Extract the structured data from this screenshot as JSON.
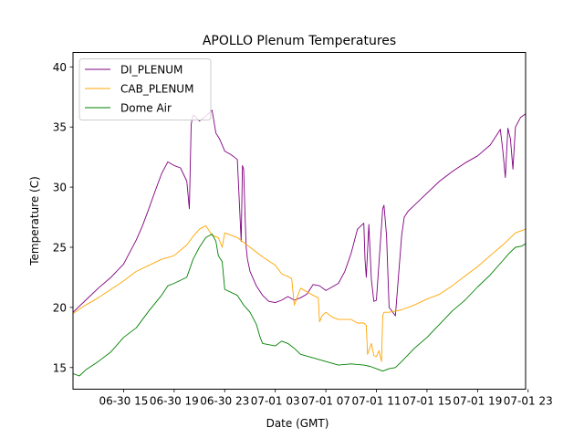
{
  "chart_data": {
    "type": "line",
    "title": "APOLLO Plenum Temperatures",
    "xlabel": "Date (GMT)",
    "ylabel": "Temperature (C)",
    "xlim": [
      11.0,
      46.8
    ],
    "ylim": [
      13.2,
      41.2
    ],
    "grid": false,
    "legend_position": "top-left",
    "x_unit": "hours since 2017-06-30 00:00 GMT",
    "x_ticks": [
      {
        "value": 15,
        "label": "06-30 15"
      },
      {
        "value": 19,
        "label": "06-30 19"
      },
      {
        "value": 23,
        "label": "06-30 23"
      },
      {
        "value": 27,
        "label": "07-01 03"
      },
      {
        "value": 31,
        "label": "07-01 07"
      },
      {
        "value": 35,
        "label": "07-01 11"
      },
      {
        "value": 39,
        "label": "07-01 15"
      },
      {
        "value": 43,
        "label": "07-01 19"
      },
      {
        "value": 47,
        "label": "07-01 23"
      }
    ],
    "y_ticks": [
      {
        "value": 15,
        "label": "15"
      },
      {
        "value": 20,
        "label": "20"
      },
      {
        "value": 25,
        "label": "25"
      },
      {
        "value": 30,
        "label": "30"
      },
      {
        "value": 35,
        "label": "35"
      },
      {
        "value": 40,
        "label": "40"
      }
    ],
    "series": [
      {
        "name": "DI_PLENUM",
        "color": "#800080",
        "x": [
          11.0,
          12.0,
          13.0,
          14.0,
          15.0,
          16.0,
          16.5,
          17.0,
          17.5,
          18.0,
          18.5,
          19.0,
          19.5,
          20.0,
          20.2,
          20.35,
          20.45,
          20.55,
          21.0,
          21.5,
          22.0,
          22.3,
          22.6,
          23.0,
          23.5,
          24.0,
          24.3,
          24.4,
          24.5,
          24.6,
          24.7,
          24.8,
          25.0,
          25.5,
          26.0,
          26.5,
          27.0,
          27.5,
          28.0,
          28.5,
          29.0,
          29.5,
          30.0,
          30.5,
          31.0,
          32.0,
          32.5,
          33.0,
          33.5,
          34.0,
          34.1,
          34.2,
          34.4,
          34.6,
          34.8,
          35.0,
          35.5,
          35.6,
          35.8,
          36.0,
          36.3,
          36.5,
          37.0,
          37.2,
          37.5,
          38.0,
          39.0,
          40.0,
          41.0,
          42.0,
          43.0,
          44.0,
          44.5,
          44.8,
          45.0,
          45.2,
          45.4,
          45.6,
          45.8,
          46.0,
          46.4,
          46.8
        ],
        "values": [
          19.6,
          20.6,
          21.6,
          22.5,
          23.6,
          25.6,
          26.8,
          28.2,
          29.7,
          31.1,
          32.1,
          31.8,
          31.6,
          30.5,
          28.2,
          35.2,
          35.8,
          36.0,
          35.5,
          35.9,
          36.4,
          34.5,
          34.0,
          33.0,
          32.7,
          32.3,
          25.5,
          31.8,
          31.5,
          28.0,
          25.0,
          24.0,
          23.0,
          21.8,
          21.0,
          20.5,
          20.4,
          20.6,
          20.9,
          20.6,
          20.8,
          21.1,
          21.9,
          21.8,
          21.4,
          22.0,
          23.0,
          24.5,
          26.5,
          27.0,
          24.0,
          22.5,
          26.9,
          22.3,
          20.5,
          20.6,
          28.2,
          28.5,
          26.0,
          20.0,
          19.6,
          19.3,
          26.0,
          27.5,
          28.0,
          28.5,
          29.5,
          30.5,
          31.3,
          32.0,
          32.6,
          33.5,
          34.3,
          34.8,
          33.0,
          30.8,
          34.9,
          34.0,
          31.5,
          35.0,
          35.8,
          36.1
        ]
      },
      {
        "name": "CAB_PLENUM",
        "color": "#ffa500",
        "x": [
          11.0,
          12.0,
          13.0,
          14.0,
          15.0,
          16.0,
          17.0,
          18.0,
          19.0,
          20.0,
          20.5,
          21.0,
          21.5,
          22.0,
          22.5,
          22.8,
          23.0,
          24.0,
          25.0,
          26.0,
          27.0,
          27.5,
          27.9,
          28.0,
          28.1,
          28.3,
          28.5,
          29.0,
          29.5,
          30.0,
          30.4,
          30.5,
          30.7,
          31.0,
          31.5,
          32.0,
          33.0,
          33.5,
          34.0,
          34.2,
          34.3,
          34.6,
          34.8,
          35.0,
          35.2,
          35.4,
          35.5,
          35.6,
          36.0,
          37.0,
          38.0,
          39.0,
          40.0,
          41.0,
          42.0,
          43.0,
          44.0,
          45.0,
          46.0,
          46.8
        ],
        "values": [
          19.5,
          20.2,
          20.8,
          21.5,
          22.2,
          23.0,
          23.5,
          24.0,
          24.3,
          25.2,
          25.9,
          26.5,
          26.8,
          26.0,
          25.8,
          25.0,
          26.2,
          25.8,
          25.0,
          24.2,
          23.5,
          22.8,
          22.6,
          22.6,
          22.5,
          22.4,
          20.2,
          21.6,
          21.3,
          21.0,
          20.8,
          18.8,
          19.3,
          19.6,
          19.2,
          19.0,
          19.0,
          18.7,
          18.7,
          18.5,
          16.1,
          17.0,
          16.0,
          15.9,
          16.4,
          15.5,
          19.3,
          19.6,
          19.6,
          19.8,
          20.2,
          20.7,
          21.1,
          21.8,
          22.6,
          23.4,
          24.3,
          25.2,
          26.2,
          26.5
        ]
      },
      {
        "name": "Dome Air",
        "color": "#008000",
        "x": [
          11.0,
          11.5,
          12.0,
          13.0,
          14.0,
          15.0,
          16.0,
          17.0,
          18.0,
          18.5,
          19.0,
          20.0,
          20.5,
          21.0,
          21.5,
          22.0,
          22.3,
          22.5,
          22.8,
          23.0,
          24.0,
          24.5,
          25.0,
          25.5,
          25.8,
          26.0,
          27.0,
          27.5,
          28.0,
          28.5,
          29.0,
          30.0,
          31.0,
          32.0,
          33.0,
          34.0,
          34.5,
          35.0,
          35.5,
          36.0,
          36.5,
          37.0,
          38.0,
          39.0,
          40.0,
          41.0,
          42.0,
          43.0,
          44.0,
          45.0,
          45.5,
          46.0,
          46.5,
          46.8
        ],
        "values": [
          14.5,
          14.3,
          14.8,
          15.5,
          16.3,
          17.5,
          18.3,
          19.7,
          21.0,
          21.8,
          22.0,
          22.5,
          24.0,
          25.0,
          25.8,
          26.1,
          25.5,
          24.3,
          23.8,
          21.5,
          21.0,
          20.2,
          19.6,
          18.6,
          17.5,
          17.0,
          16.8,
          17.2,
          17.0,
          16.6,
          16.1,
          15.8,
          15.5,
          15.2,
          15.3,
          15.2,
          15.1,
          14.9,
          14.7,
          14.9,
          15.0,
          15.5,
          16.6,
          17.5,
          18.6,
          19.7,
          20.6,
          21.7,
          22.7,
          23.9,
          24.5,
          25.0,
          25.1,
          25.3
        ]
      }
    ]
  }
}
